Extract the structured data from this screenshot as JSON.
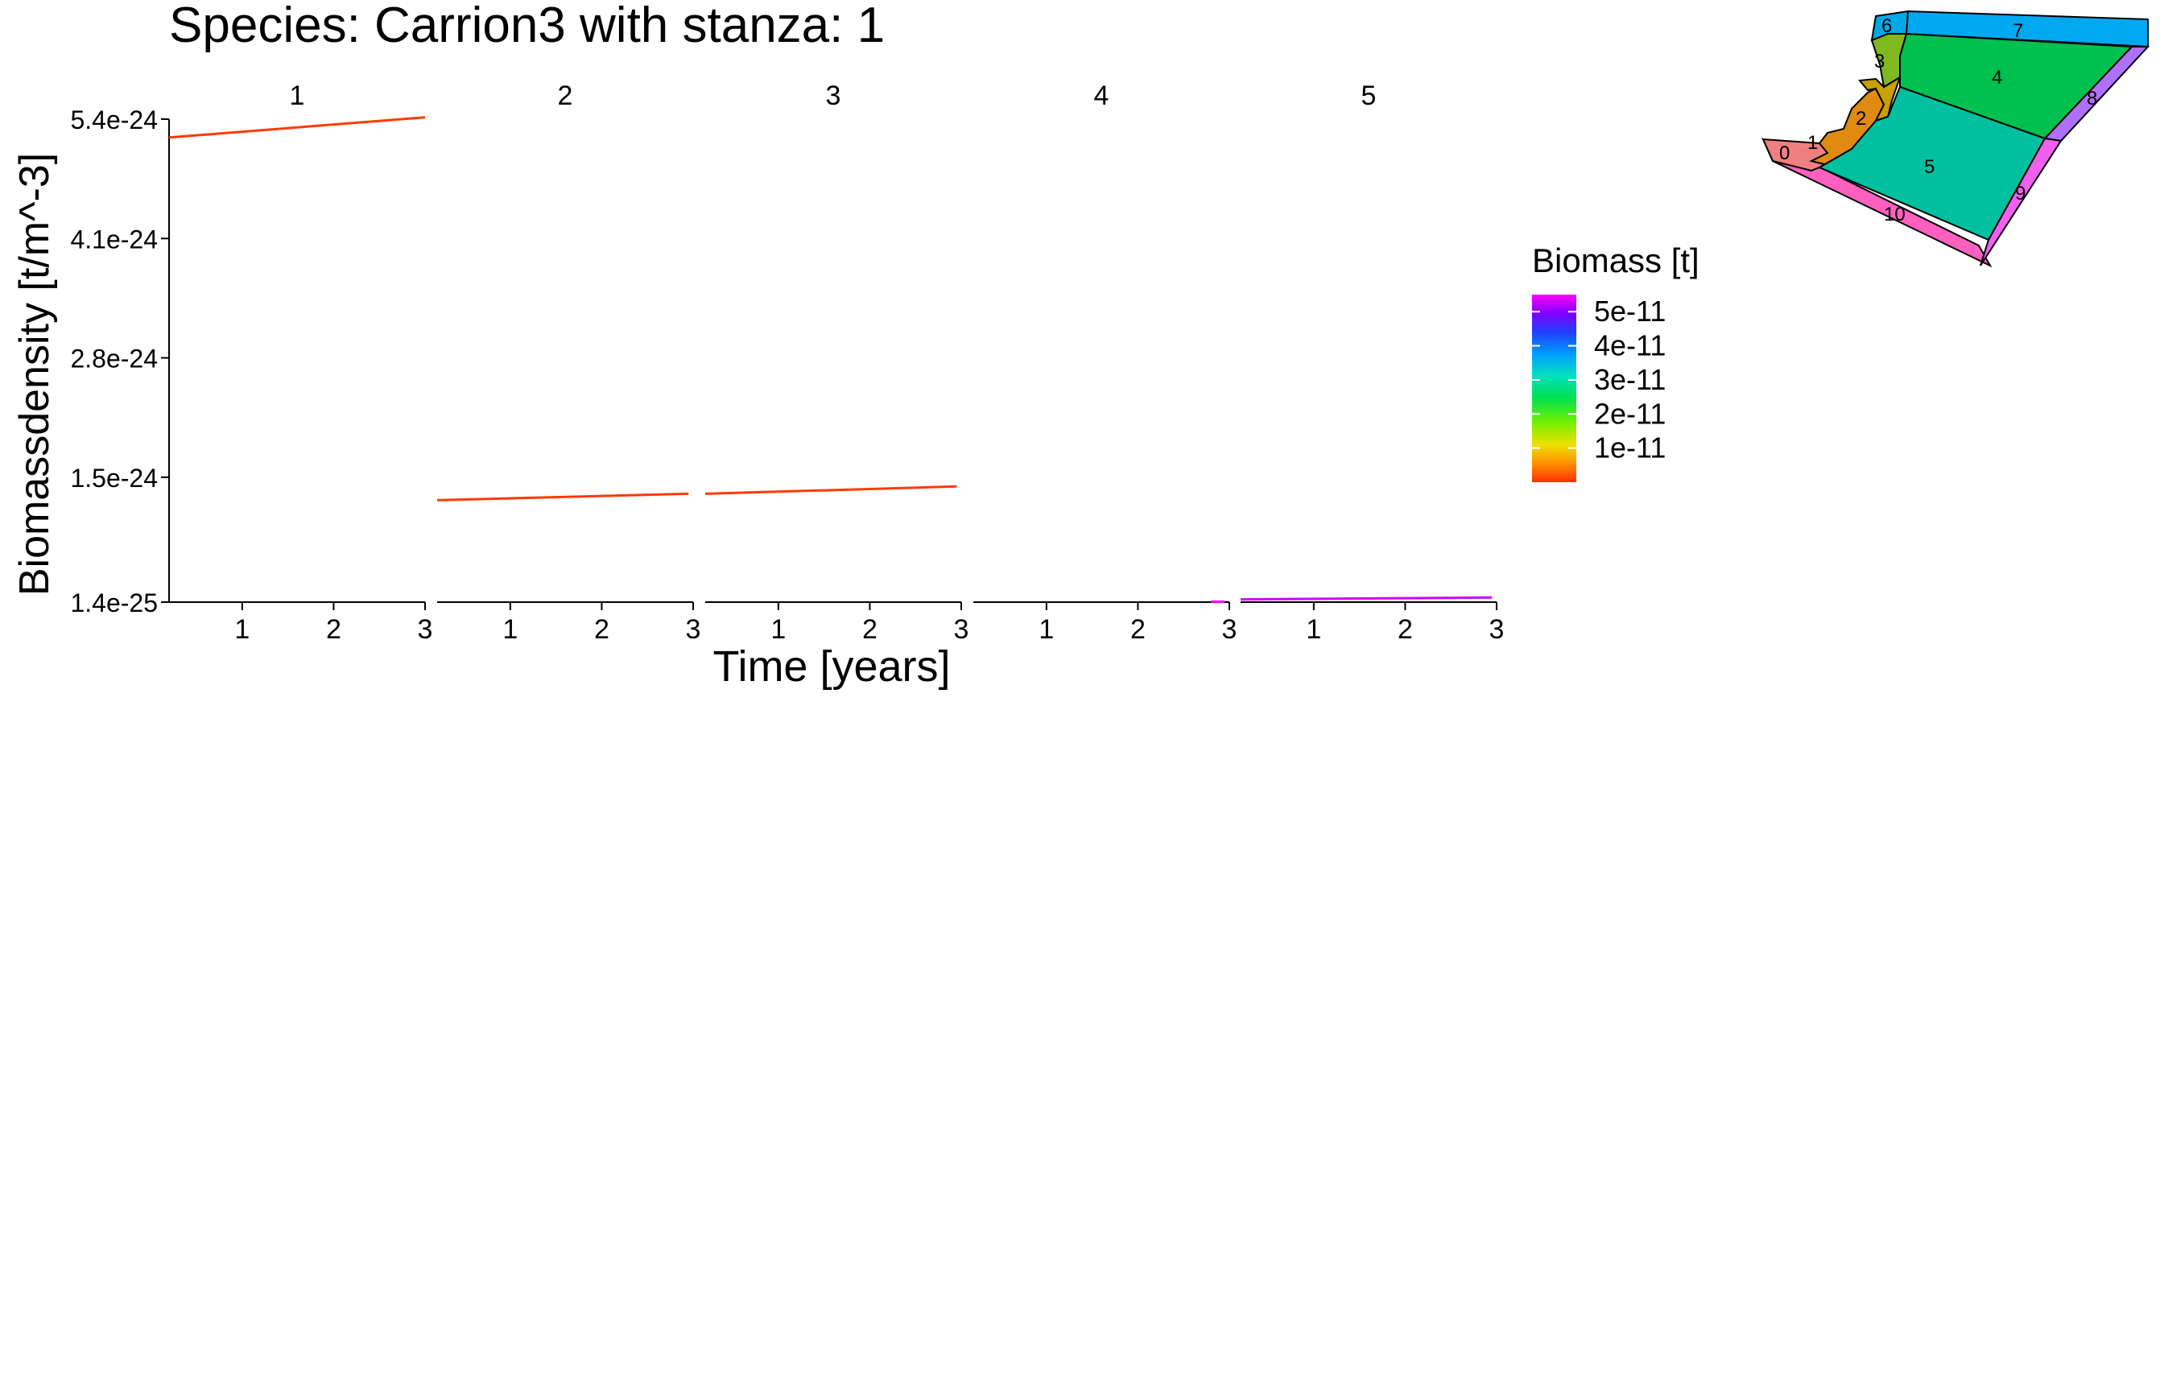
{
  "chart_data": {
    "type": "line",
    "title": "Species: Carrion3 with stanza: 1",
    "xlabel": "Time [years]",
    "ylabel": "Biomassdensity [t/m^-3]",
    "xlim": [
      0.2,
      3.0
    ],
    "ylim": [
      1.4e-25,
      5.4e-24
    ],
    "y_ticks": [
      {
        "value": 1.4e-25,
        "label": "1.4e-25"
      },
      {
        "value": 1.5e-24,
        "label": "1.5e-24"
      },
      {
        "value": 2.8e-24,
        "label": "2.8e-24"
      },
      {
        "value": 4.1e-24,
        "label": "4.1e-24"
      },
      {
        "value": 5.4e-24,
        "label": "5.4e-24"
      }
    ],
    "x_ticks": [
      {
        "value": 1,
        "label": "1"
      },
      {
        "value": 2,
        "label": "2"
      },
      {
        "value": 3,
        "label": "3"
      }
    ],
    "grid": false,
    "legend": {
      "title": "Biomass [t]",
      "placement": "right",
      "range": [
        0,
        5.5e-11
      ],
      "ticks": [
        {
          "value": 5e-11,
          "label": "5e-11"
        },
        {
          "value": 4e-11,
          "label": "4e-11"
        },
        {
          "value": 3e-11,
          "label": "3e-11"
        },
        {
          "value": 2e-11,
          "label": "2e-11"
        },
        {
          "value": 1e-11,
          "label": "1e-11"
        }
      ]
    },
    "panels": [
      {
        "label": "1",
        "color": "#ff3a00",
        "x": [
          0.2,
          3.0
        ],
        "y": [
          5.2e-24,
          5.42e-24
        ]
      },
      {
        "label": "2",
        "color": "#ff3a00",
        "x": [
          0.0,
          2.95
        ],
        "y": [
          1.25e-24,
          1.32e-24
        ]
      },
      {
        "label": "3",
        "color": "#ff3a00",
        "x": [
          0.0,
          2.95
        ],
        "y": [
          1.32e-24,
          1.4e-24
        ]
      },
      {
        "label": "4",
        "color": "#ff00ff",
        "x": [
          2.8,
          2.95
        ],
        "y": [
          1.45e-25,
          1.45e-25
        ]
      },
      {
        "label": "5",
        "color": "#d000ff",
        "x": [
          0.0,
          2.95
        ],
        "y": [
          1.7e-25,
          1.9e-25
        ]
      }
    ]
  },
  "inset_map": {
    "regions": [
      {
        "label": "0",
        "color": "#f08080"
      },
      {
        "label": "1",
        "color": "#e08a10"
      },
      {
        "label": "2",
        "color": "#c8a000"
      },
      {
        "label": "3",
        "color": "#80b820"
      },
      {
        "label": "4",
        "color": "#00c050"
      },
      {
        "label": "5",
        "color": "#00c0a0"
      },
      {
        "label": "6",
        "color": "#00a8e8"
      },
      {
        "label": "7",
        "color": "#00a8f0"
      },
      {
        "label": "8",
        "color": "#b070ff"
      },
      {
        "label": "9",
        "color": "#f060f0"
      },
      {
        "label": "10",
        "color": "#ff60c0"
      }
    ]
  }
}
